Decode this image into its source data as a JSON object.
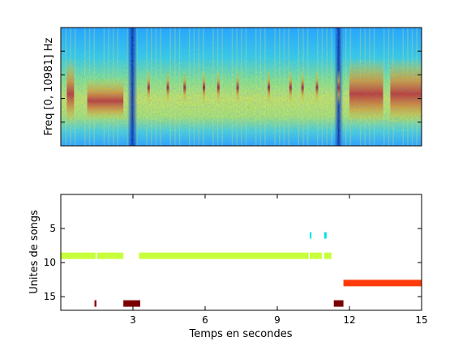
{
  "chart_data": [
    {
      "type": "heatmap",
      "title": "",
      "xlabel": "",
      "ylabel": "Freq [0, 10981] Hz",
      "xlim": [
        0,
        15
      ],
      "ylim": [
        0,
        10981
      ],
      "colormap": "jet",
      "note_regions": [
        {
          "t0": 0.25,
          "t1": 0.55,
          "level": "high"
        },
        {
          "t0": 1.1,
          "t1": 2.6,
          "level": "mid"
        },
        {
          "t0": 3.6,
          "t1": 3.7,
          "level": "pulse"
        },
        {
          "t0": 4.4,
          "t1": 4.5,
          "level": "pulse"
        },
        {
          "t0": 5.1,
          "t1": 5.2,
          "level": "pulse"
        },
        {
          "t0": 5.9,
          "t1": 6.0,
          "level": "pulse"
        },
        {
          "t0": 6.5,
          "t1": 6.6,
          "level": "pulse"
        },
        {
          "t0": 7.3,
          "t1": 7.4,
          "level": "pulse"
        },
        {
          "t0": 8.6,
          "t1": 8.7,
          "level": "pulse"
        },
        {
          "t0": 9.5,
          "t1": 9.6,
          "level": "pulse"
        },
        {
          "t0": 10.0,
          "t1": 10.1,
          "level": "pulse"
        },
        {
          "t0": 10.6,
          "t1": 10.7,
          "level": "pulse"
        },
        {
          "t0": 11.5,
          "t1": 11.6,
          "level": "pulse"
        },
        {
          "t0": 12.0,
          "t1": 13.4,
          "level": "high"
        },
        {
          "t0": 13.7,
          "t1": 15.0,
          "level": "high"
        }
      ],
      "dark_bands": [
        {
          "t0": 2.9,
          "t1": 3.05
        },
        {
          "t0": 11.5,
          "t1": 11.6
        }
      ]
    },
    {
      "type": "bar",
      "title": "",
      "xlabel": "Temps en secondes",
      "ylabel": "Unites de songs",
      "xlim": [
        0,
        15
      ],
      "ylim": [
        0,
        17
      ],
      "y_reversed": true,
      "xticks": [
        3,
        6,
        9,
        12,
        15
      ],
      "yticks": [
        5,
        10,
        15
      ],
      "segments": [
        {
          "unit": 6,
          "t0": 10.35,
          "t1": 10.42,
          "color": "#00e5e5"
        },
        {
          "unit": 6,
          "t0": 10.95,
          "t1": 11.05,
          "color": "#00e5e5"
        },
        {
          "unit": 9,
          "t0": 0.0,
          "t1": 1.45,
          "color": "#c8ff3c"
        },
        {
          "unit": 9,
          "t0": 1.5,
          "t1": 2.6,
          "color": "#c8ff3c"
        },
        {
          "unit": 9,
          "t0": 3.25,
          "t1": 10.3,
          "color": "#c8ff3c"
        },
        {
          "unit": 9,
          "t0": 10.35,
          "t1": 10.85,
          "color": "#c8ff3c"
        },
        {
          "unit": 9,
          "t0": 10.95,
          "t1": 11.25,
          "color": "#c8ff3c"
        },
        {
          "unit": 13,
          "t0": 11.75,
          "t1": 15.0,
          "color": "#ff3a0a"
        },
        {
          "unit": 16,
          "t0": 1.4,
          "t1": 1.48,
          "color": "#8b0000"
        },
        {
          "unit": 16,
          "t0": 2.6,
          "t1": 3.3,
          "color": "#7a0000"
        },
        {
          "unit": 16,
          "t0": 11.35,
          "t1": 11.75,
          "color": "#7a0000"
        }
      ]
    }
  ]
}
